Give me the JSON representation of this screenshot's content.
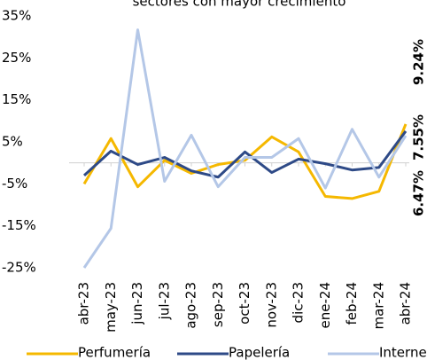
{
  "chart_data": {
    "type": "line",
    "title": "sectores con mayor crecimiento",
    "categories": [
      "abr-23",
      "may-23",
      "jun-23",
      "jul-23",
      "ago-23",
      "sep-23",
      "oct-23",
      "nov-23",
      "dic-23",
      "ene-24",
      "feb-24",
      "mar-24",
      "abr-24"
    ],
    "series": [
      {
        "name": "Perfumería",
        "color": "#f5b800",
        "label_color": "#c9a21e",
        "values": [
          -5,
          5.8,
          -5.7,
          0.6,
          -2.5,
          -0.4,
          0.6,
          6.2,
          2.6,
          -8,
          -8.5,
          -6.8,
          9.24
        ],
        "value_labels": [
          null,
          null,
          null,
          null,
          null,
          null,
          null,
          null,
          null,
          null,
          null,
          null,
          "9.24%"
        ]
      },
      {
        "name": "Papelería",
        "color": "#2e4a87",
        "label_color": "#2e4a87",
        "values": [
          -3,
          2.8,
          -0.4,
          1.3,
          -1.9,
          -3.4,
          2.6,
          -2.3,
          0.9,
          -0.2,
          -1.7,
          -1.1,
          7.55
        ],
        "value_labels": [
          null,
          null,
          null,
          null,
          null,
          null,
          null,
          null,
          null,
          null,
          null,
          null,
          "7.55%"
        ]
      },
      {
        "name": "Internet",
        "color": "#b4c7e7",
        "label_color": "#a9bddf",
        "values": [
          -25,
          -15.6,
          31.7,
          -4.4,
          6.6,
          -5.7,
          1.3,
          1.3,
          5.8,
          -6,
          8,
          -3.4,
          6.47
        ],
        "value_labels": [
          null,
          null,
          null,
          null,
          null,
          null,
          null,
          null,
          null,
          null,
          null,
          null,
          "6.47%"
        ]
      }
    ],
    "ylim": [
      -25,
      35
    ],
    "yticks": [
      {
        "value": 35,
        "label": "35%"
      },
      {
        "value": 25,
        "label": "25%"
      },
      {
        "value": 15,
        "label": "15%"
      },
      {
        "value": 5,
        "label": "5%"
      },
      {
        "value": -5,
        "label": "-5%"
      },
      {
        "value": -15,
        "label": "-15%"
      },
      {
        "value": -25,
        "label": "-25%"
      }
    ],
    "legend": "bottom"
  }
}
